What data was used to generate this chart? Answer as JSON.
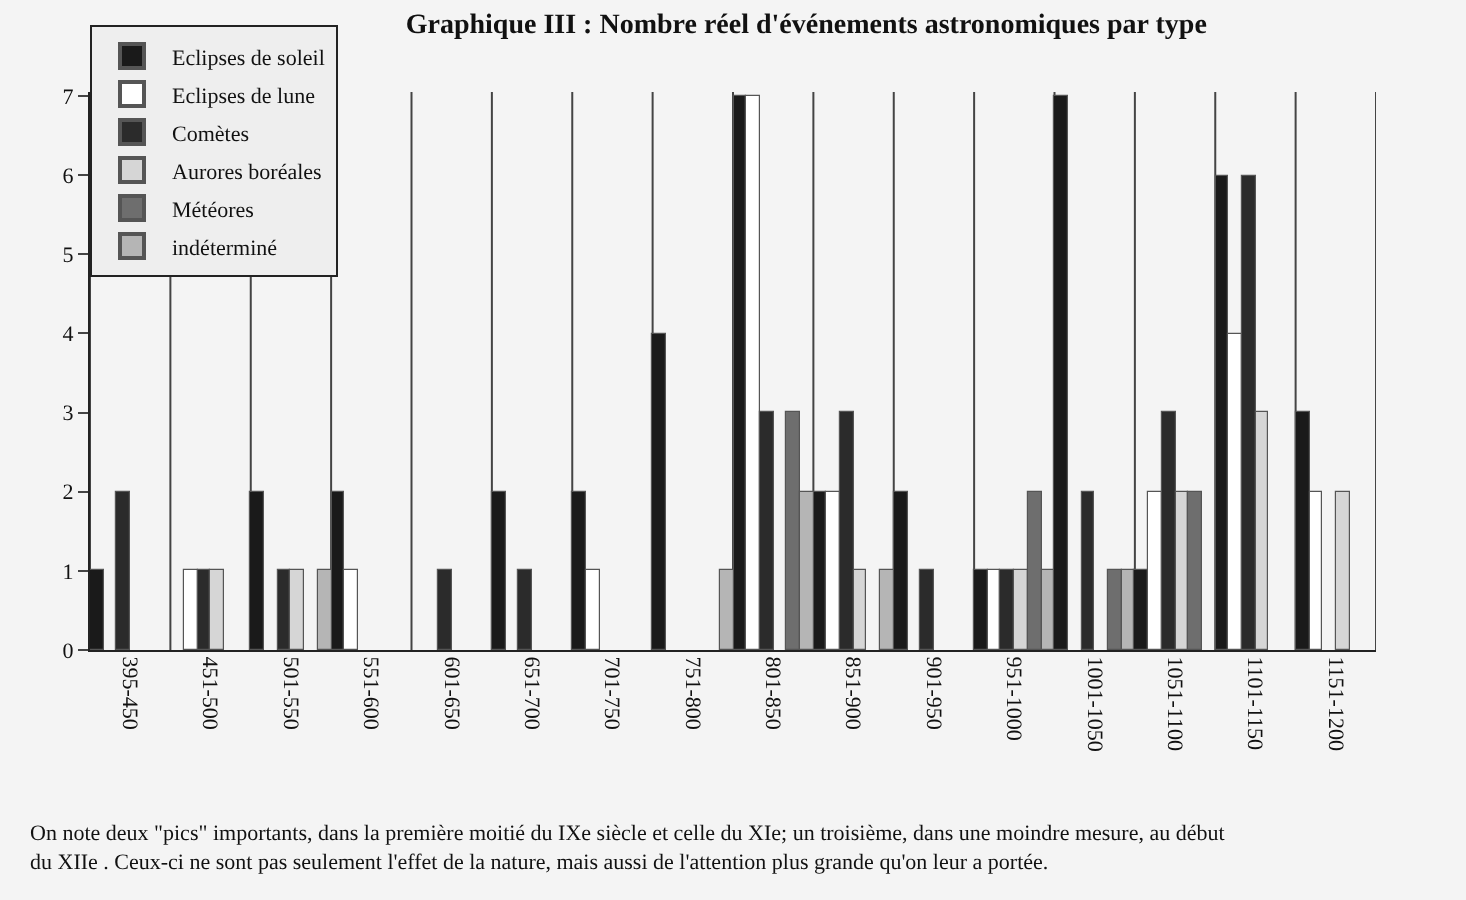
{
  "chart_data": {
    "type": "bar",
    "title": "Graphique III : Nombre réel d'événements astronomiques par type",
    "categories": [
      "395-450",
      "451-500",
      "501-550",
      "551-600",
      "601-650",
      "651-700",
      "701-750",
      "751-800",
      "801-850",
      "851-900",
      "901-950",
      "951-1000",
      "1001-1050",
      "1051-1100",
      "1101-1150",
      "1151-1200"
    ],
    "series": [
      {
        "name": "Eclipses de soleil",
        "color": "#1a1a1a",
        "values": [
          1,
          0,
          2,
          2,
          0,
          2,
          2,
          4,
          7,
          2,
          2,
          1,
          7,
          1,
          6,
          3
        ]
      },
      {
        "name": "Eclipses de lune",
        "color": "#ffffff",
        "values": [
          0,
          1,
          0,
          1,
          0,
          0,
          1,
          0,
          7,
          2,
          0,
          1,
          0,
          2,
          4,
          2
        ]
      },
      {
        "name": "Comètes",
        "color": "#2b2b2b",
        "values": [
          2,
          1,
          1,
          0,
          1,
          1,
          0,
          0,
          3,
          3,
          1,
          1,
          2,
          3,
          6,
          0
        ]
      },
      {
        "name": "Aurores boréales",
        "color": "#d6d6d6",
        "values": [
          0,
          1,
          1,
          0,
          0,
          0,
          0,
          0,
          0,
          1,
          0,
          1,
          0,
          2,
          3,
          2
        ]
      },
      {
        "name": "Météores",
        "color": "#6e6e6e",
        "values": [
          0,
          0,
          0,
          0,
          0,
          0,
          0,
          0,
          3,
          0,
          0,
          2,
          1,
          2,
          0,
          0
        ]
      },
      {
        "name": "indéterminé",
        "color": "#b5b5b5",
        "values": [
          0,
          0,
          1,
          0,
          0,
          0,
          0,
          1,
          2,
          1,
          0,
          1,
          1,
          0,
          0,
          0
        ]
      }
    ],
    "ylim": [
      0,
      7.05
    ],
    "yticks": [
      0,
      1,
      2,
      3,
      4,
      5,
      6,
      7
    ],
    "grid": "x",
    "legend": "top left",
    "annotations": [
      "On note deux \"pics\" importants, dans la première moitié du IXe siècle et celle du XIe; un troisième, dans une moindre mesure, au début du XIIe . Ceux-ci ne sont pas seulement l'effet de la nature, mais aussi de l'attention plus grande qu'on leur a portée."
    ]
  }
}
